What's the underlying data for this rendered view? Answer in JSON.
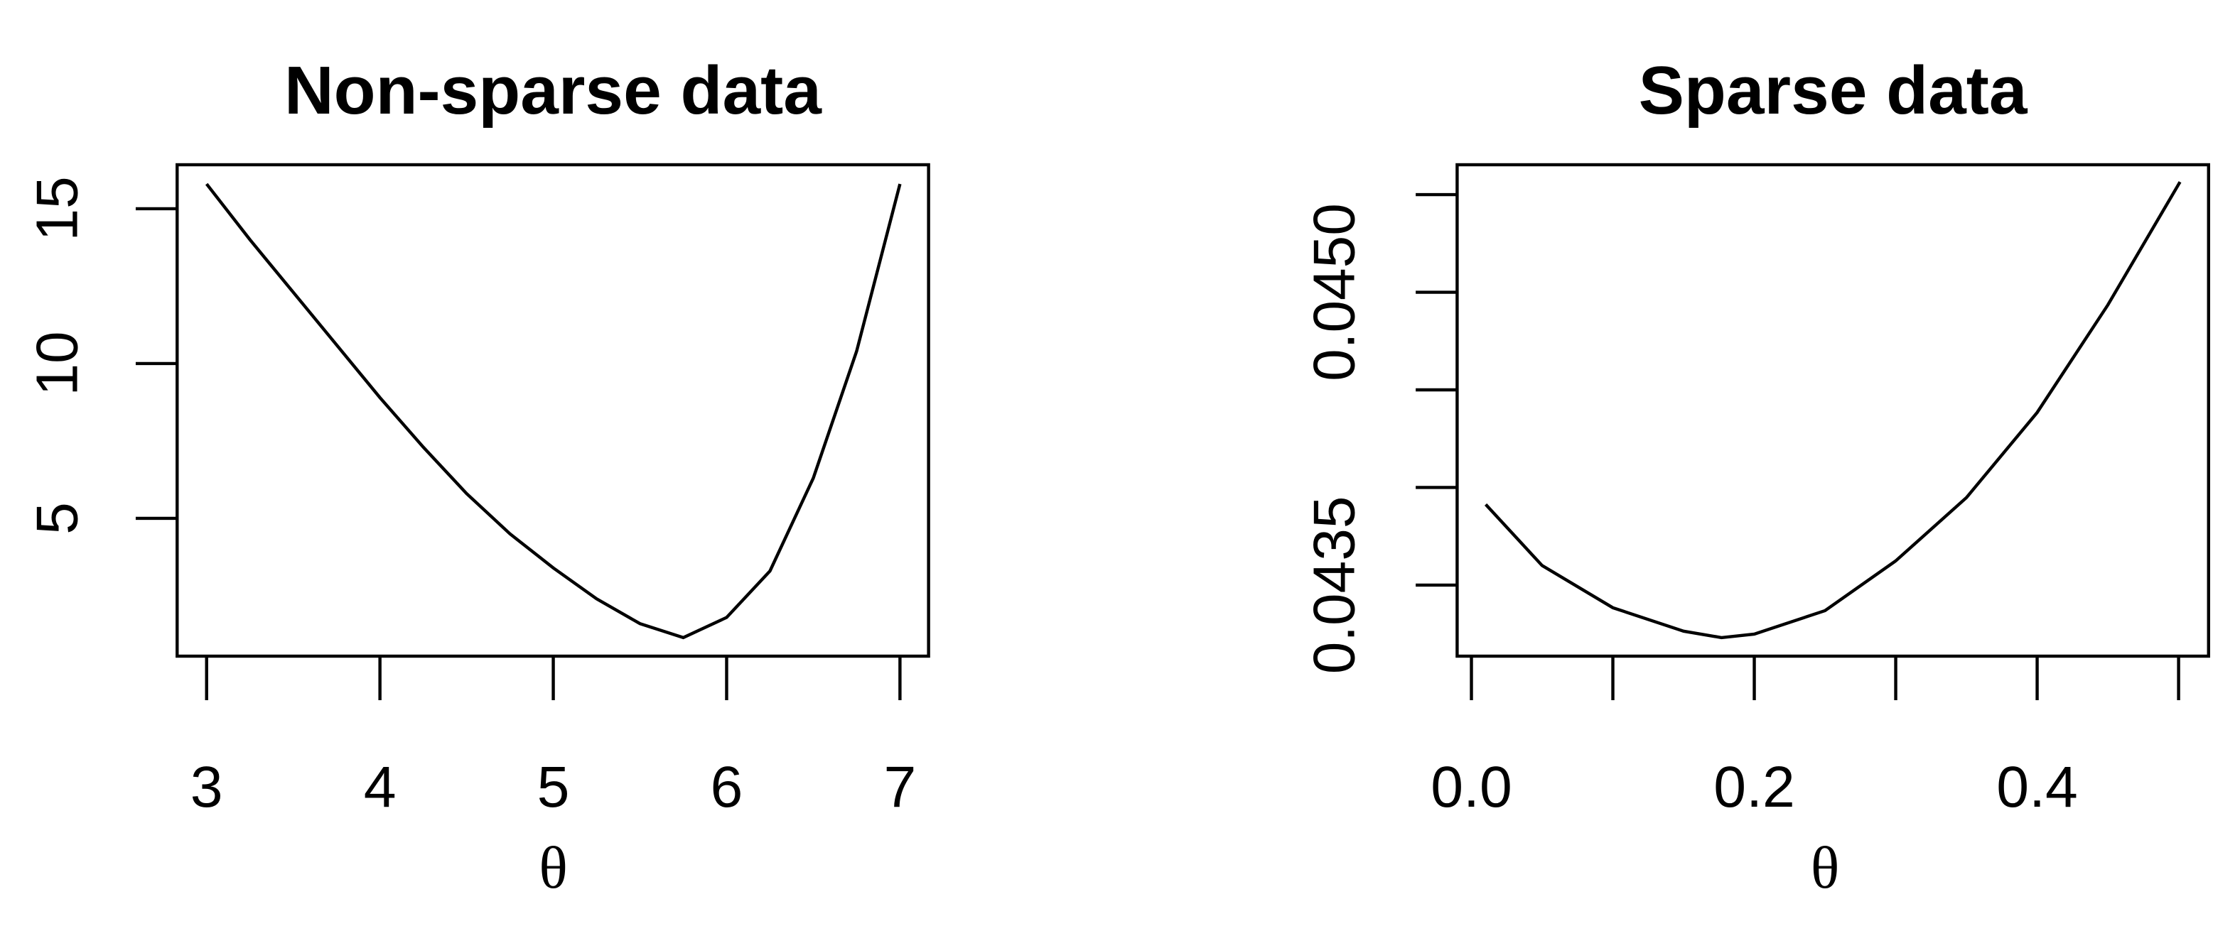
{
  "chart_data": [
    {
      "type": "line",
      "title": "Non-sparse data",
      "x_label": "θ",
      "color": "#000000",
      "x": [
        3,
        3.25,
        3.5,
        3.75,
        4,
        4.25,
        4.5,
        4.75,
        5,
        5.25,
        5.5,
        5.75,
        6,
        6.25,
        6.5,
        6.75,
        7
      ],
      "values": [
        15.8,
        14.0,
        12.3,
        10.6,
        8.9,
        7.3,
        5.8,
        4.5,
        3.4,
        2.4,
        1.6,
        1.15,
        1.8,
        3.3,
        6.3,
        10.4,
        15.8
      ],
      "xlim": [
        2.83,
        7.165
      ],
      "ylim": [
        0.55,
        16.42
      ],
      "xticks": [
        3,
        4,
        5,
        6,
        7
      ],
      "xtick_labels": [
        3,
        4,
        5,
        6,
        7
      ],
      "yticks": [
        5,
        10,
        15
      ],
      "ytick_labels": [
        5,
        10,
        15
      ]
    },
    {
      "type": "line",
      "title": "Sparse data",
      "x_label": "θ",
      "color": "#000000",
      "x": [
        0.0101,
        0.05,
        0.1,
        0.15,
        0.1768,
        0.2,
        0.25,
        0.3,
        0.35,
        0.4,
        0.45,
        0.501
      ],
      "values": [
        0.043913,
        0.0436,
        0.043384,
        0.043264,
        0.043231,
        0.043249,
        0.043369,
        0.043624,
        0.043948,
        0.044384,
        0.044935,
        0.045565
      ],
      "xlim": [
        -0.0101,
        0.5212
      ],
      "ylim": [
        0.043136,
        0.045653
      ],
      "xticks": [
        0,
        0.1,
        0.2,
        0.3,
        0.4,
        0.5
      ],
      "xtick_labels": [
        {
          "value": 0,
          "label": "0.0"
        },
        0.2,
        0.4
      ],
      "yticks": [
        0.0435,
        0.044,
        0.0445,
        0.045,
        0.0455
      ],
      "ytick_labels": [
        0.0435,
        {
          "value": 0.045,
          "label": "0.0450"
        }
      ]
    }
  ]
}
